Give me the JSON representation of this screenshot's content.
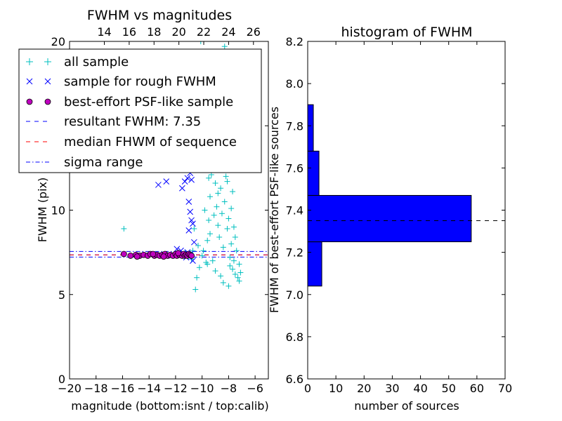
{
  "colors": {
    "all_sample": "#00bfbf",
    "rough_sample": "#0000ff",
    "psf_fill": "#bf00bf",
    "resultant_line": "#0000ff",
    "median_line": "#ff0000",
    "sigma_line": "#0000ff",
    "hist_fill": "#0000ff",
    "hist_mean_line": "#000000"
  },
  "chart_data": [
    {
      "type": "scatter",
      "title": "FWHM vs magnitudes",
      "xlabel": "magnitude (bottom:isnt / top:calib)",
      "ylabel": "FWHM (pix)",
      "xlim": [
        -20,
        -5
      ],
      "ylim": [
        0,
        20
      ],
      "x_ticks": [
        "−20",
        "−18",
        "−16",
        "−14",
        "−12",
        "−10",
        "−8",
        "−6"
      ],
      "x_tick_values": [
        -20,
        -18,
        -16,
        -14,
        -12,
        -10,
        -8,
        -6
      ],
      "y_ticks": [
        "0",
        "5",
        "10",
        "15",
        "20"
      ],
      "y_tick_values": [
        0,
        5,
        10,
        15,
        20
      ],
      "top_ticks": [
        "14",
        "16",
        "18",
        "20",
        "22",
        "24",
        "26"
      ],
      "top_tick_values": [
        14,
        16,
        18,
        20,
        22,
        24,
        26
      ],
      "top_axis": {
        "bottom_at": [
          -20,
          -5
        ],
        "top_at": [
          11.2,
          27.2
        ]
      },
      "legend": {
        "placement": "upper-left",
        "items": [
          {
            "label": "all sample",
            "marker": "+"
          },
          {
            "label": "sample for rough FWHM",
            "marker": "x"
          },
          {
            "label": "best-effort PSF-like sample",
            "marker": "circle"
          },
          {
            "label": "resultant FWHM: 7.35",
            "marker": "dashed"
          },
          {
            "label": "median FHWM of sequence",
            "marker": "dashed"
          },
          {
            "label": "sigma range",
            "marker": "dashdot"
          }
        ]
      },
      "series": [
        {
          "marker": "+",
          "points": [
            [
              -15.9,
              8.9
            ],
            [
              -10.5,
              5.3
            ],
            [
              -10.4,
              6.0
            ],
            [
              -10.2,
              6.6
            ],
            [
              -10.0,
              7.3
            ],
            [
              -9.9,
              7.6
            ],
            [
              -9.7,
              6.9
            ],
            [
              -9.6,
              8.2
            ],
            [
              -9.5,
              9.4
            ],
            [
              -9.4,
              10.8
            ],
            [
              -9.3,
              12.1
            ],
            [
              -9.2,
              13.5
            ],
            [
              -9.1,
              12.4
            ],
            [
              -9.0,
              11.6
            ],
            [
              -9.0,
              14.6
            ],
            [
              -8.9,
              10.2
            ],
            [
              -8.9,
              13.1
            ],
            [
              -8.8,
              9.1
            ],
            [
              -8.8,
              15.2
            ],
            [
              -8.7,
              12.7
            ],
            [
              -8.7,
              8.4
            ],
            [
              -8.6,
              14.1
            ],
            [
              -8.6,
              11.3
            ],
            [
              -8.5,
              16.0
            ],
            [
              -8.5,
              9.8
            ],
            [
              -8.4,
              13.4
            ],
            [
              -8.4,
              7.8
            ],
            [
              -8.3,
              15.5
            ],
            [
              -8.3,
              10.5
            ],
            [
              -8.2,
              12.0
            ],
            [
              -8.2,
              14.9
            ],
            [
              -8.1,
              8.9
            ],
            [
              -8.1,
              11.7
            ],
            [
              -8.0,
              13.8
            ],
            [
              -8.0,
              9.5
            ],
            [
              -7.9,
              12.6
            ],
            [
              -7.9,
              7.2
            ],
            [
              -7.8,
              10.1
            ],
            [
              -7.8,
              8.0
            ],
            [
              -7.7,
              11.1
            ],
            [
              -7.7,
              6.5
            ],
            [
              -7.6,
              9.0
            ],
            [
              -7.6,
              7.0
            ],
            [
              -7.5,
              8.4
            ],
            [
              -7.5,
              6.2
            ],
            [
              -7.4,
              7.6
            ],
            [
              -7.3,
              6.0
            ],
            [
              -7.2,
              6.8
            ],
            [
              -7.2,
              5.8
            ],
            [
              -7.1,
              6.3
            ],
            [
              -8.9,
              17.4
            ],
            [
              -8.5,
              17.9
            ],
            [
              -8.2,
              16.8
            ],
            [
              -8.7,
              16.4
            ],
            [
              -9.3,
              15.8
            ],
            [
              -10.6,
              8.9
            ],
            [
              -10.3,
              7.9
            ],
            [
              -9.8,
              10.0
            ],
            [
              -9.0,
              6.4
            ],
            [
              -8.6,
              6.1
            ],
            [
              -8.4,
              5.7
            ],
            [
              -8.0,
              5.5
            ],
            [
              -7.9,
              6.7
            ],
            [
              -10.1,
              20.0
            ],
            [
              -8.3,
              19.7
            ],
            [
              -10.7,
              7.6
            ],
            [
              -10.9,
              7.4
            ],
            [
              -11.3,
              7.5
            ],
            [
              -11.6,
              7.3
            ],
            [
              -10.8,
              7.1
            ],
            [
              -9.6,
              6.8
            ],
            [
              -9.2,
              7.0
            ],
            [
              -9.4,
              8.6
            ],
            [
              -9.8,
              12.9
            ],
            [
              -9.7,
              14.3
            ],
            [
              -9.5,
              11.9
            ],
            [
              -9.1,
              9.7
            ],
            [
              -8.8,
              11.0
            ]
          ]
        },
        {
          "marker": "x",
          "points": [
            [
              -13.3,
              11.5
            ],
            [
              -12.7,
              11.7
            ],
            [
              -11.5,
              11.3
            ],
            [
              -11.3,
              11.7
            ],
            [
              -11.1,
              11.9
            ],
            [
              -10.9,
              12.2
            ],
            [
              -10.8,
              11.8
            ],
            [
              -10.7,
              12.4
            ],
            [
              -11.0,
              10.5
            ],
            [
              -10.9,
              9.9
            ],
            [
              -10.8,
              9.4
            ],
            [
              -10.7,
              9.2
            ],
            [
              -11.0,
              8.8
            ],
            [
              -10.6,
              8.1
            ],
            [
              -11.9,
              7.7
            ],
            [
              -11.6,
              7.6
            ],
            [
              -11.2,
              7.2
            ],
            [
              -10.9,
              7.4
            ],
            [
              -12.3,
              7.3
            ],
            [
              -11.4,
              7.3
            ],
            [
              -10.7,
              7.0
            ],
            [
              -11.1,
              7.5
            ]
          ]
        },
        {
          "marker": "circle",
          "points": [
            [
              -15.9,
              7.4
            ],
            [
              -15.4,
              7.3
            ],
            [
              -15.0,
              7.35
            ],
            [
              -14.7,
              7.3
            ],
            [
              -14.4,
              7.35
            ],
            [
              -14.1,
              7.3
            ],
            [
              -13.9,
              7.4
            ],
            [
              -13.6,
              7.3
            ],
            [
              -13.4,
              7.35
            ],
            [
              -13.2,
              7.3
            ],
            [
              -13.0,
              7.35
            ],
            [
              -12.8,
              7.4
            ],
            [
              -12.6,
              7.3
            ],
            [
              -12.4,
              7.35
            ],
            [
              -12.2,
              7.3
            ],
            [
              -12.0,
              7.4
            ],
            [
              -11.9,
              7.3
            ],
            [
              -11.7,
              7.35
            ],
            [
              -11.5,
              7.3
            ],
            [
              -11.4,
              7.4
            ],
            [
              -11.3,
              7.3
            ],
            [
              -11.2,
              7.35
            ],
            [
              -11.1,
              7.3
            ],
            [
              -11.0,
              7.4
            ],
            [
              -10.9,
              7.35
            ],
            [
              -10.8,
              7.3
            ],
            [
              -12.9,
              7.25
            ],
            [
              -14.9,
              7.25
            ],
            [
              -13.7,
              7.4
            ],
            [
              -11.8,
              7.45
            ]
          ]
        }
      ],
      "lines": [
        {
          "label": "resultant FWHM: 7.35",
          "y": 7.35,
          "style": "dashed"
        },
        {
          "label": "median FHWM of sequence",
          "y": 7.35,
          "style": "dashed"
        },
        {
          "label": "sigma range",
          "y": 7.22,
          "style": "dashdot"
        },
        {
          "label": "sigma range",
          "y": 7.55,
          "style": "dashdot"
        }
      ]
    },
    {
      "type": "bar",
      "orientation": "horizontal",
      "title": "histogram of FWHM",
      "xlabel": "number of sources",
      "ylabel": "FWHM of best-effort PSF-like sources",
      "xlim": [
        0,
        70
      ],
      "ylim": [
        6.6,
        8.2
      ],
      "x_ticks": [
        "0",
        "10",
        "20",
        "30",
        "40",
        "50",
        "60",
        "70"
      ],
      "x_tick_values": [
        0,
        10,
        20,
        30,
        40,
        50,
        60,
        70
      ],
      "y_ticks": [
        "6.6",
        "6.8",
        "7.0",
        "7.2",
        "7.4",
        "7.6",
        "7.8",
        "8.0",
        "8.2"
      ],
      "y_tick_values": [
        6.6,
        6.8,
        7.0,
        7.2,
        7.4,
        7.6,
        7.8,
        8.0,
        8.2
      ],
      "bins": [
        {
          "range": [
            7.04,
            7.25
          ],
          "count": 5
        },
        {
          "range": [
            7.25,
            7.47
          ],
          "count": 58
        },
        {
          "range": [
            7.47,
            7.68
          ],
          "count": 4
        },
        {
          "range": [
            7.68,
            7.9
          ],
          "count": 2
        }
      ],
      "mean_line": 7.35
    }
  ]
}
